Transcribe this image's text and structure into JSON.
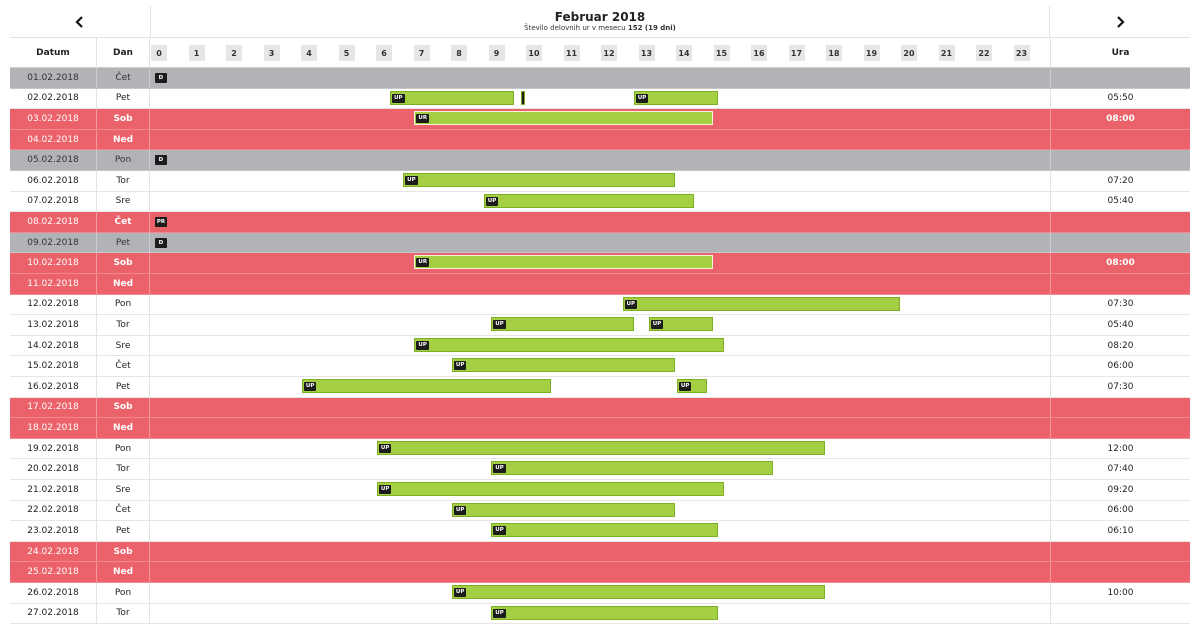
{
  "header": {
    "month_title": "Februar 2018",
    "subtitle_prefix": "Število delovnih ur v mesecu ",
    "subtitle_hours": "152",
    "subtitle_days": " (19 dni)",
    "prev_icon": "chevron-left-icon",
    "next_icon": "chevron-right-icon"
  },
  "columns": {
    "date": "Datum",
    "day": "Dan",
    "hours_total": "Ura"
  },
  "hours": [
    "0",
    "1",
    "2",
    "3",
    "4",
    "5",
    "6",
    "7",
    "8",
    "9",
    "10",
    "11",
    "12",
    "13",
    "14",
    "15",
    "16",
    "17",
    "18",
    "19",
    "20",
    "21",
    "22",
    "23"
  ],
  "colors": {
    "weekend": "#ec626a",
    "absent": "#b1b3b7",
    "work_bar": "#a5cf42",
    "tag": "#1c1c1c"
  },
  "rows": [
    {
      "date": "01.02.2018",
      "day": "Čet",
      "type": "absent",
      "ura": "",
      "tags": [
        {
          "label": "D",
          "start": 0.05
        }
      ]
    },
    {
      "date": "02.02.2018",
      "day": "Pet",
      "type": "normal",
      "ura": "05:50",
      "bars": [
        {
          "label": "UP",
          "start": 6.4,
          "end": 9.7
        },
        {
          "label": "",
          "start": 9.9,
          "end": 10.0,
          "tick": true
        },
        {
          "label": "UP",
          "start": 12.9,
          "end": 15.15
        }
      ]
    },
    {
      "date": "03.02.2018",
      "day": "Sob",
      "type": "weekend",
      "ura": "08:00",
      "bars": [
        {
          "label": "UR",
          "start": 7.05,
          "end": 15.0
        }
      ]
    },
    {
      "date": "04.02.2018",
      "day": "Ned",
      "type": "weekend",
      "ura": ""
    },
    {
      "date": "05.02.2018",
      "day": "Pon",
      "type": "absent",
      "ura": "",
      "tags": [
        {
          "label": "D",
          "start": 0.05
        }
      ]
    },
    {
      "date": "06.02.2018",
      "day": "Tor",
      "type": "normal",
      "ura": "07:20",
      "bars": [
        {
          "label": "UP",
          "start": 6.75,
          "end": 14.0
        }
      ]
    },
    {
      "date": "07.02.2018",
      "day": "Sre",
      "type": "normal",
      "ura": "05:40",
      "bars": [
        {
          "label": "UP",
          "start": 8.9,
          "end": 14.5
        }
      ]
    },
    {
      "date": "08.02.2018",
      "day": "Čet",
      "type": "weekend",
      "ura": "",
      "tags": [
        {
          "label": "PR",
          "start": 0.05
        }
      ]
    },
    {
      "date": "09.02.2018",
      "day": "Pet",
      "type": "absent",
      "ura": "",
      "tags": [
        {
          "label": "D",
          "start": 0.05
        }
      ]
    },
    {
      "date": "10.02.2018",
      "day": "Sob",
      "type": "weekend",
      "ura": "08:00",
      "bars": [
        {
          "label": "UR",
          "start": 7.05,
          "end": 15.0
        }
      ]
    },
    {
      "date": "11.02.2018",
      "day": "Ned",
      "type": "weekend",
      "ura": ""
    },
    {
      "date": "12.02.2018",
      "day": "Pon",
      "type": "normal",
      "ura": "07:30",
      "bars": [
        {
          "label": "UP",
          "start": 12.6,
          "end": 20.0
        }
      ]
    },
    {
      "date": "13.02.2018",
      "day": "Tor",
      "type": "normal",
      "ura": "05:40",
      "bars": [
        {
          "label": "UP",
          "start": 9.1,
          "end": 12.9
        },
        {
          "label": "UP",
          "start": 13.3,
          "end": 15.0
        }
      ]
    },
    {
      "date": "14.02.2018",
      "day": "Sre",
      "type": "normal",
      "ura": "08:20",
      "bars": [
        {
          "label": "UP",
          "start": 7.05,
          "end": 15.3
        }
      ]
    },
    {
      "date": "15.02.2018",
      "day": "Čet",
      "type": "normal",
      "ura": "06:00",
      "bars": [
        {
          "label": "UP",
          "start": 8.05,
          "end": 14.0
        }
      ]
    },
    {
      "date": "16.02.2018",
      "day": "Pet",
      "type": "normal",
      "ura": "07:30",
      "bars": [
        {
          "label": "UP",
          "start": 4.05,
          "end": 10.7
        },
        {
          "label": "UP",
          "start": 14.05,
          "end": 14.85
        }
      ]
    },
    {
      "date": "17.02.2018",
      "day": "Sob",
      "type": "weekend",
      "ura": ""
    },
    {
      "date": "18.02.2018",
      "day": "Ned",
      "type": "weekend",
      "ura": ""
    },
    {
      "date": "19.02.2018",
      "day": "Pon",
      "type": "normal",
      "ura": "12:00",
      "bars": [
        {
          "label": "UP",
          "start": 6.05,
          "end": 18.0
        }
      ]
    },
    {
      "date": "20.02.2018",
      "day": "Tor",
      "type": "normal",
      "ura": "07:40",
      "bars": [
        {
          "label": "UP",
          "start": 9.1,
          "end": 16.6
        }
      ]
    },
    {
      "date": "21.02.2018",
      "day": "Sre",
      "type": "normal",
      "ura": "09:20",
      "bars": [
        {
          "label": "UP",
          "start": 6.05,
          "end": 15.3
        }
      ]
    },
    {
      "date": "22.02.2018",
      "day": "Čet",
      "type": "normal",
      "ura": "06:00",
      "bars": [
        {
          "label": "UP",
          "start": 8.05,
          "end": 14.0
        }
      ]
    },
    {
      "date": "23.02.2018",
      "day": "Pet",
      "type": "normal",
      "ura": "06:10",
      "bars": [
        {
          "label": "UP",
          "start": 9.1,
          "end": 15.15
        }
      ]
    },
    {
      "date": "24.02.2018",
      "day": "Sob",
      "type": "weekend",
      "ura": ""
    },
    {
      "date": "25.02.2018",
      "day": "Ned",
      "type": "weekend",
      "ura": ""
    },
    {
      "date": "26.02.2018",
      "day": "Pon",
      "type": "normal",
      "ura": "10:00",
      "bars": [
        {
          "label": "UP",
          "start": 8.05,
          "end": 18.0
        }
      ]
    },
    {
      "date": "27.02.2018",
      "day": "Tor",
      "type": "normal",
      "ura": "",
      "bars": [
        {
          "label": "UP",
          "start": 9.1,
          "end": 15.15
        }
      ]
    }
  ]
}
